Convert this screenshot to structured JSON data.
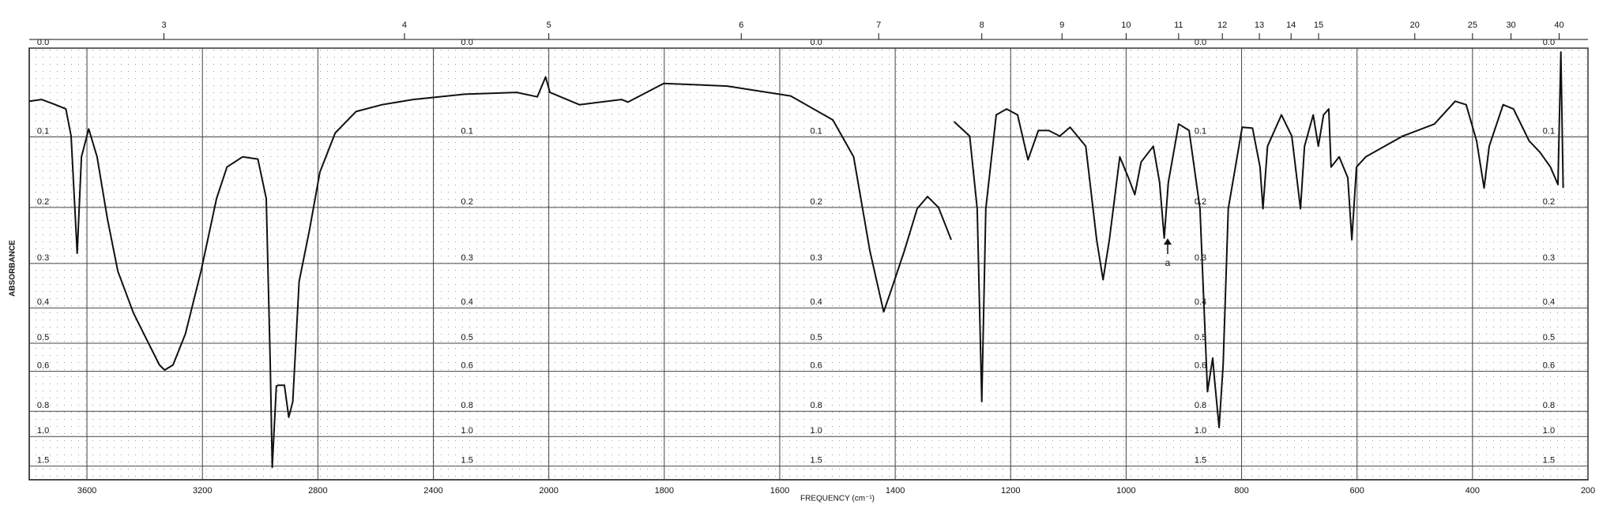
{
  "chart_data": {
    "type": "line",
    "x_label": "FREQUENCY (cm⁻¹)",
    "y_label": "ABSORBANCE",
    "annotation": "a",
    "xscale": "piecewise",
    "yscale": "transmittance",
    "grid": true,
    "color": "#111111",
    "xlim": [
      3800,
      200
    ],
    "xticks": [
      3600,
      3200,
      2800,
      2400,
      2000,
      1800,
      1600,
      1400,
      1200,
      1000,
      800,
      600,
      400,
      200
    ],
    "x2ticks": [
      3,
      4,
      5,
      6,
      7,
      8,
      9,
      10,
      11,
      12,
      13,
      14,
      15,
      20,
      25,
      30,
      40
    ],
    "yticks": [
      {
        "value": 0,
        "label": "0.0"
      },
      0.1,
      0.2,
      0.3,
      0.4,
      0.5,
      0.6,
      0.8,
      {
        "value": 1,
        "label": "1.0"
      },
      1.5
    ],
    "x": [
      3800,
      3757,
      3709,
      3673,
      3655,
      3634,
      3619,
      3594,
      3565,
      3529,
      3493,
      3439,
      3385,
      3349,
      3331,
      3302,
      3259,
      3205,
      3151,
      3115,
      3061,
      3008,
      2979,
      2965,
      2958,
      2944,
      2937,
      2916,
      2901,
      2887,
      2865,
      2829,
      2793,
      2740,
      2668,
      2578,
      2470,
      2291,
      2111,
      2040,
      2011,
      1998,
      1947,
      1874,
      1863,
      1801,
      1691,
      1581,
      1508,
      1472,
      1444,
      1420,
      1408,
      1384,
      1362,
      1344,
      1325,
      1303,
      1300,
      1298,
      1271,
      1258,
      1250,
      1243,
      1225,
      1207,
      1188,
      1170,
      1152,
      1134,
      1115,
      1097,
      1070,
      1051,
      1040,
      1029,
      1011,
      996,
      985,
      974,
      953,
      942,
      934,
      927,
      909,
      891,
      872,
      859,
      850,
      847,
      839,
      832,
      823,
      799,
      781,
      768,
      763,
      755,
      731,
      713,
      698,
      691,
      676,
      667,
      658,
      649,
      645,
      631,
      616,
      609,
      601,
      585,
      521,
      466,
      430,
      411,
      393,
      380,
      371,
      347,
      329,
      302,
      283,
      265,
      252,
      247,
      243
    ],
    "values": [
      0.057,
      0.055,
      0.061,
      0.066,
      0.099,
      0.28,
      0.126,
      0.09,
      0.126,
      0.219,
      0.316,
      0.413,
      0.503,
      0.575,
      0.595,
      0.575,
      0.471,
      0.316,
      0.186,
      0.14,
      0.126,
      0.129,
      0.186,
      0.575,
      1.54,
      0.663,
      0.66,
      0.66,
      0.839,
      0.742,
      0.338,
      0.237,
      0.147,
      0.095,
      0.069,
      0.061,
      0.055,
      0.049,
      0.047,
      0.052,
      0.03,
      0.047,
      0.061,
      0.055,
      0.058,
      0.037,
      0.04,
      0.051,
      0.079,
      0.126,
      0.275,
      0.41,
      0.361,
      0.275,
      0.202,
      0.183,
      0.2,
      0.255,
      null,
      0.081,
      0.099,
      0.202,
      0.742,
      0.202,
      0.073,
      0.066,
      0.073,
      0.13,
      0.092,
      0.092,
      0.099,
      0.088,
      0.112,
      0.255,
      0.334,
      0.255,
      0.126,
      0.155,
      0.18,
      0.133,
      0.112,
      0.162,
      0.252,
      0.162,
      0.084,
      0.092,
      0.202,
      0.69,
      0.55,
      0.63,
      0.917,
      0.575,
      0.202,
      0.088,
      0.089,
      0.14,
      0.202,
      0.112,
      0.073,
      0.099,
      0.202,
      0.112,
      0.073,
      0.112,
      0.073,
      0.066,
      0.14,
      0.126,
      0.155,
      0.255,
      0.14,
      0.126,
      0.099,
      0.084,
      0.057,
      0.061,
      0.105,
      0.17,
      0.112,
      0.061,
      0.066,
      0.105,
      0.12,
      0.14,
      0.165,
      0.004,
      0.17
    ]
  }
}
